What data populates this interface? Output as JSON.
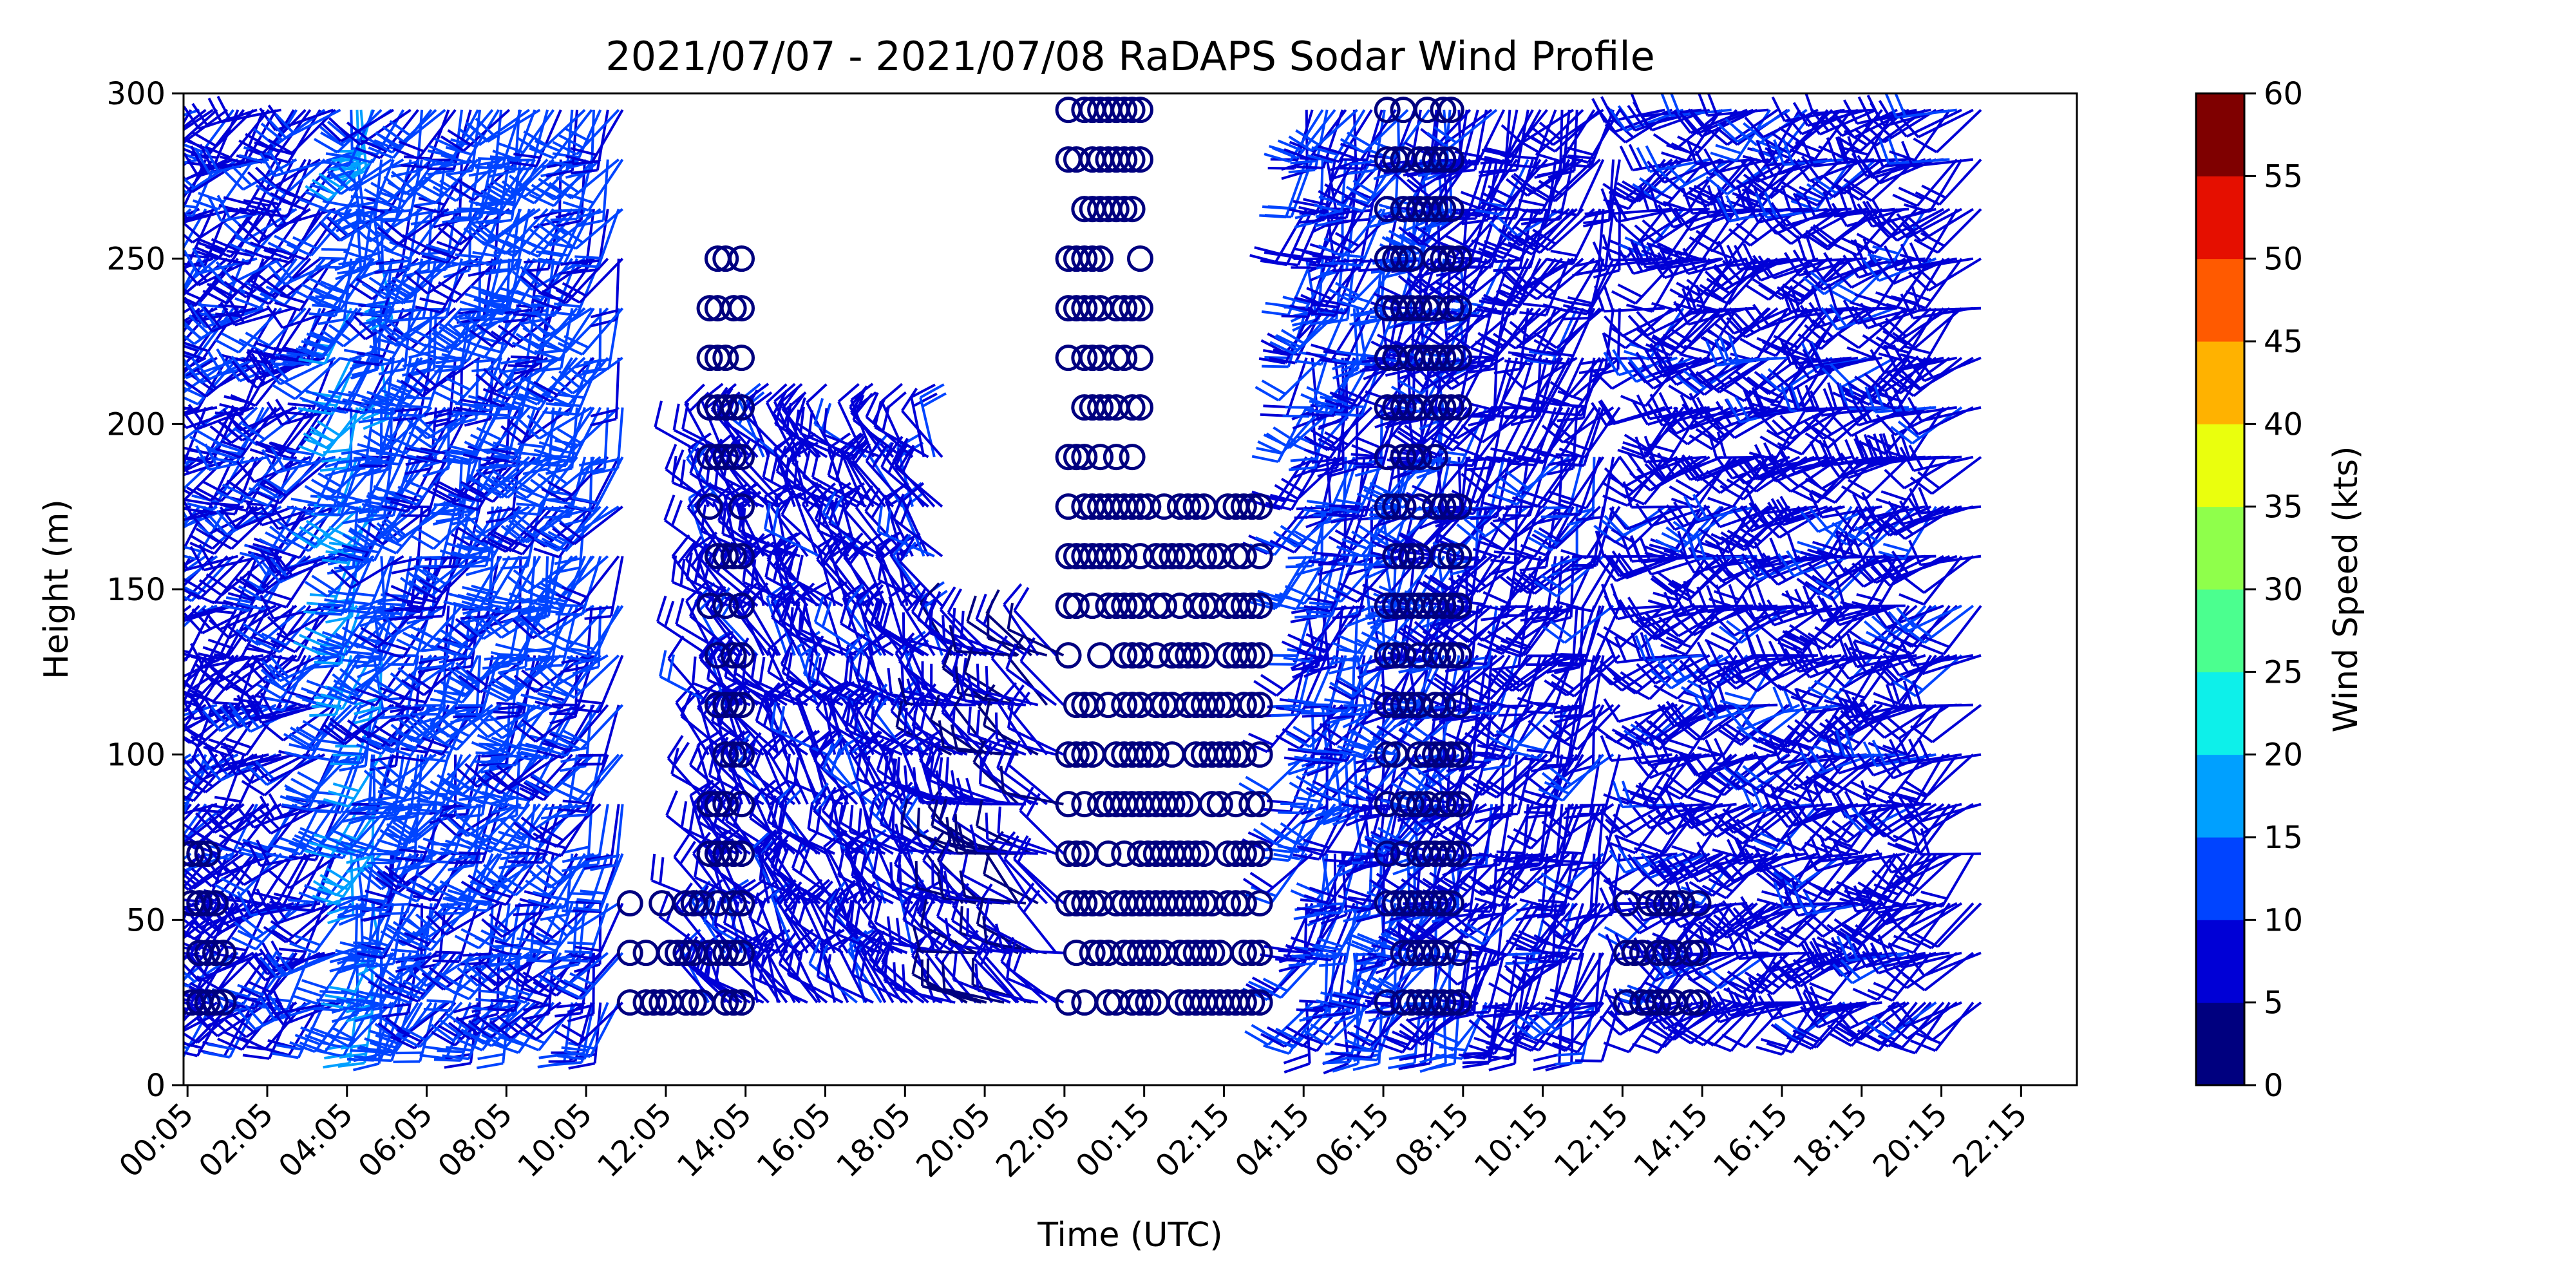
{
  "chart_data": {
    "type": "scatter",
    "title": "2021/07/07 - 2021/07/08 RaDAPS Sodar Wind Profile",
    "xlabel": "Time (UTC)",
    "ylabel": "Height (m)",
    "ylim": [
      0,
      300
    ],
    "y_ticks": [
      0,
      50,
      100,
      150,
      200,
      250,
      300
    ],
    "x_ticks": [
      "00:05",
      "02:05",
      "04:05",
      "06:05",
      "08:05",
      "10:05",
      "12:05",
      "14:05",
      "16:05",
      "18:05",
      "20:05",
      "22:05",
      "00:15",
      "02:15",
      "04:15",
      "06:15",
      "08:15",
      "10:15",
      "12:15",
      "14:15",
      "16:15",
      "18:15",
      "20:15",
      "22:15"
    ],
    "heights": [
      25,
      40,
      55,
      70,
      85,
      100,
      115,
      130,
      145,
      160,
      175,
      190,
      205,
      220,
      235,
      250,
      265,
      280,
      295
    ],
    "colorbar": {
      "label": "Wind Speed (kts)",
      "ticks": [
        0,
        5,
        10,
        15,
        20,
        25,
        30,
        35,
        40,
        45,
        50,
        55,
        60
      ],
      "colors": [
        "#00007f",
        "#0000d6",
        "#0044ff",
        "#00a0ff",
        "#0df0ea",
        "#4bff8f",
        "#8fff4b",
        "#eaff0d",
        "#ffb200",
        "#ff5a00",
        "#e50f00",
        "#7f0000"
      ]
    },
    "series": [
      {
        "legend_hint": "Wind barbs",
        "segments": [
          {
            "x": [
              0,
              4
            ],
            "h_max": 295,
            "speed": 9,
            "dir": 230
          },
          {
            "x": [
              4,
              5
            ],
            "h_max": 295,
            "speed": 14,
            "dir": 200
          },
          {
            "x": [
              5,
              11
            ],
            "h_max": 295,
            "speed": 11,
            "dir": 210
          },
          {
            "x": [
              13,
              19
            ],
            "h_max": 190,
            "speed": 8,
            "dir": 320
          },
          {
            "x": [
              19,
              22
            ],
            "h_max": 130,
            "speed": 6,
            "dir": 300
          },
          {
            "x": [
              28,
              32
            ],
            "h_max": 295,
            "speed": 10,
            "dir": 200
          },
          {
            "x": [
              32,
              36
            ],
            "h_max": 295,
            "speed": 8,
            "dir": 210
          },
          {
            "x": [
              37,
              45
            ],
            "h_max": 295,
            "speed": 8,
            "dir": 240
          }
        ]
      },
      {
        "legend_hint": "Calm circles",
        "segments": [
          {
            "x": [
              0,
              1
            ],
            "h_max": 70
          },
          {
            "x": [
              11,
              13
            ],
            "h_max": 55
          },
          {
            "x": [
              13,
              14
            ],
            "h_max": 250
          },
          {
            "x": [
              22,
              24
            ],
            "h_max": 295
          },
          {
            "x": [
              24,
              27
            ],
            "h_max": 175
          },
          {
            "x": [
              30,
              32
            ],
            "h_max": 295
          },
          {
            "x": [
              36,
              38
            ],
            "h_max": 55
          }
        ]
      }
    ]
  }
}
